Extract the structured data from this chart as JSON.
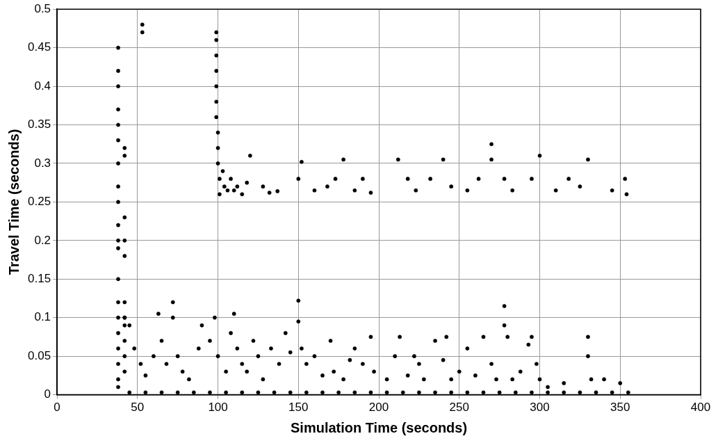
{
  "chart_data": {
    "type": "scatter",
    "xlabel": "Simulation Time (seconds)",
    "ylabel": "Travel Time (seconds)",
    "xlim": [
      0,
      400
    ],
    "xticks": [
      0,
      50,
      100,
      150,
      200,
      250,
      300,
      350,
      400
    ],
    "ylim": [
      0,
      0.5
    ],
    "yticks": [
      0,
      0.05,
      0.1,
      0.15,
      0.2,
      0.25,
      0.3,
      0.35,
      0.4,
      0.45,
      0.5
    ],
    "grid": true,
    "legend": false,
    "marker": "circle",
    "series": [
      {
        "color": "#000000",
        "x": [
          38,
          38,
          38,
          38,
          38,
          38,
          38,
          38,
          38,
          38,
          38,
          38,
          38,
          38,
          38,
          38,
          38,
          38,
          38,
          38,
          42,
          42,
          42,
          42,
          42,
          42,
          42,
          42,
          42,
          42,
          42,
          53,
          53,
          99,
          99,
          99,
          99,
          99,
          99,
          99,
          100,
          100,
          100,
          101,
          101,
          103,
          104,
          106,
          108,
          110,
          112,
          115,
          118,
          120,
          128,
          132,
          137,
          150,
          152,
          160,
          168,
          173,
          178,
          185,
          190,
          195,
          212,
          218,
          223,
          232,
          240,
          245,
          255,
          262,
          270,
          270,
          278,
          283,
          295,
          300,
          310,
          318,
          325,
          330,
          345,
          353,
          354,
          45,
          55,
          65,
          75,
          85,
          95,
          105,
          115,
          125,
          135,
          145,
          155,
          165,
          175,
          185,
          195,
          205,
          215,
          225,
          235,
          245,
          255,
          265,
          275,
          285,
          295,
          305,
          315,
          325,
          335,
          345,
          355,
          42,
          45,
          48,
          52,
          55,
          60,
          63,
          65,
          68,
          72,
          72,
          75,
          78,
          82,
          88,
          90,
          95,
          98,
          100,
          105,
          108,
          110,
          112,
          115,
          118,
          122,
          125,
          128,
          133,
          138,
          142,
          145,
          150,
          150,
          152,
          155,
          160,
          165,
          170,
          172,
          178,
          182,
          185,
          190,
          195,
          197,
          205,
          210,
          213,
          218,
          222,
          225,
          228,
          235,
          240,
          242,
          245,
          250,
          255,
          260,
          265,
          270,
          273,
          278,
          278,
          280,
          283,
          288,
          293,
          295,
          298,
          300,
          305,
          315,
          330,
          330,
          332,
          340,
          350
        ],
        "values": [
          0.45,
          0.42,
          0.4,
          0.37,
          0.35,
          0.33,
          0.3,
          0.27,
          0.25,
          0.22,
          0.2,
          0.19,
          0.15,
          0.12,
          0.1,
          0.08,
          0.06,
          0.04,
          0.02,
          0.01,
          0.32,
          0.31,
          0.23,
          0.2,
          0.18,
          0.12,
          0.1,
          0.09,
          0.07,
          0.05,
          0.03,
          0.48,
          0.47,
          0.47,
          0.46,
          0.44,
          0.42,
          0.4,
          0.38,
          0.36,
          0.34,
          0.32,
          0.3,
          0.28,
          0.26,
          0.29,
          0.27,
          0.265,
          0.28,
          0.265,
          0.27,
          0.26,
          0.275,
          0.31,
          0.27,
          0.262,
          0.264,
          0.28,
          0.302,
          0.265,
          0.27,
          0.28,
          0.305,
          0.265,
          0.28,
          0.262,
          0.305,
          0.28,
          0.265,
          0.28,
          0.305,
          0.27,
          0.265,
          0.28,
          0.325,
          0.305,
          0.28,
          0.265,
          0.28,
          0.31,
          0.265,
          0.28,
          0.27,
          0.305,
          0.265,
          0.28,
          0.26,
          0.003,
          0.003,
          0.003,
          0.003,
          0.003,
          0.003,
          0.003,
          0.003,
          0.003,
          0.003,
          0.003,
          0.003,
          0.003,
          0.003,
          0.003,
          0.003,
          0.003,
          0.003,
          0.003,
          0.003,
          0.003,
          0.003,
          0.003,
          0.003,
          0.003,
          0.003,
          0.003,
          0.003,
          0.003,
          0.003,
          0.003,
          0.003,
          0.1,
          0.09,
          0.06,
          0.04,
          0.025,
          0.05,
          0.105,
          0.07,
          0.04,
          0.12,
          0.1,
          0.05,
          0.03,
          0.02,
          0.06,
          0.09,
          0.07,
          0.1,
          0.05,
          0.03,
          0.08,
          0.105,
          0.06,
          0.04,
          0.03,
          0.07,
          0.05,
          0.02,
          0.06,
          0.04,
          0.08,
          0.055,
          0.122,
          0.095,
          0.06,
          0.04,
          0.05,
          0.025,
          0.07,
          0.03,
          0.02,
          0.045,
          0.06,
          0.04,
          0.075,
          0.03,
          0.02,
          0.05,
          0.075,
          0.025,
          0.05,
          0.04,
          0.02,
          0.07,
          0.045,
          0.075,
          0.02,
          0.03,
          0.06,
          0.025,
          0.075,
          0.04,
          0.02,
          0.115,
          0.09,
          0.075,
          0.02,
          0.03,
          0.065,
          0.075,
          0.04,
          0.02,
          0.01,
          0.015,
          0.075,
          0.05,
          0.02,
          0.02,
          0.015
        ]
      }
    ]
  }
}
